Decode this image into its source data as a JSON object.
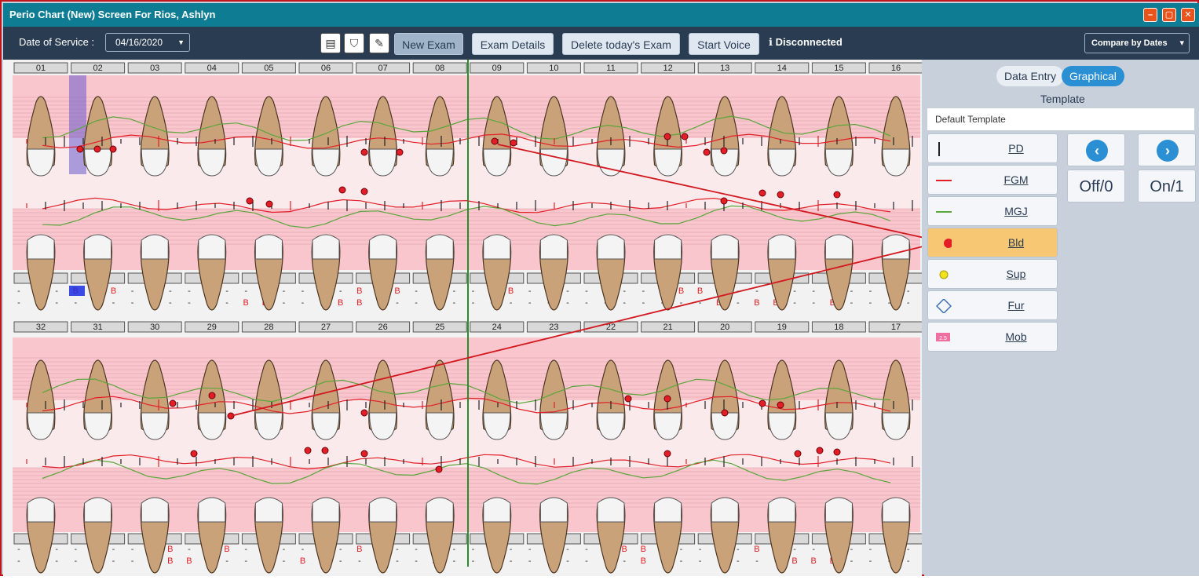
{
  "window": {
    "title": "Perio Chart (New) Screen For Rios, Ashlyn"
  },
  "toolbar": {
    "date_label": "Date of Service :",
    "date_value": "04/16/2020",
    "new_exam": "New Exam",
    "exam_details": "Exam Details",
    "delete_exam": "Delete today's Exam",
    "start_voice": "Start Voice",
    "status": "Disconnected",
    "compare": "Compare by Dates"
  },
  "chart": {
    "upper_teeth": [
      "01",
      "02",
      "03",
      "04",
      "05",
      "06",
      "07",
      "08",
      "09",
      "10",
      "11",
      "12",
      "13",
      "14",
      "15",
      "16"
    ],
    "lower_teeth": [
      "32",
      "31",
      "30",
      "29",
      "28",
      "27",
      "26",
      "25",
      "24",
      "23",
      "22",
      "21",
      "20",
      "19",
      "18",
      "17"
    ],
    "upper_row1": [
      "-",
      "-",
      "-",
      "B",
      "B",
      "B",
      "-",
      "-",
      "-",
      "-",
      "-",
      "-",
      "-",
      "-",
      "-",
      "-",
      "-",
      "-",
      "B",
      "-",
      "B",
      "-",
      "-",
      "-",
      "-",
      "B",
      "B",
      "-",
      "-",
      "-",
      "-",
      "-",
      "-",
      "-",
      "-",
      "B",
      "B",
      "B",
      "-",
      "-",
      "-",
      "-",
      "-",
      "-",
      "-",
      "-",
      "-",
      "-"
    ],
    "upper_row2": [
      "-",
      "-",
      "-",
      "-",
      "-",
      "-",
      "-",
      "-",
      "-",
      "-",
      "-",
      "-",
      "B",
      "B",
      "-",
      "-",
      "-",
      "B",
      "B",
      "-",
      "-",
      "-",
      "-",
      "-",
      "-",
      "-",
      "-",
      "-",
      "-",
      "-",
      "-",
      "-",
      "-",
      "-",
      "-",
      "-",
      "-",
      "B",
      "-",
      "B",
      "B",
      "-",
      "-",
      "B",
      "-",
      "-",
      "-",
      "-"
    ],
    "lower_row1": [
      "-",
      "-",
      "-",
      "-",
      "-",
      "-",
      "-",
      "-",
      "B",
      "-",
      "B",
      "B",
      "-",
      "-",
      "-",
      "-",
      "-",
      "-",
      "B",
      "-",
      "-",
      "-",
      "-",
      "-",
      "-",
      "-",
      "-",
      "-",
      "-",
      "-",
      "-",
      "-",
      "B",
      "B",
      "B",
      "-",
      "-",
      "B",
      "-",
      "B",
      "B",
      "-",
      "-",
      "-",
      "-",
      "-",
      "-",
      "-"
    ],
    "lower_row2": [
      "-",
      "-",
      "-",
      "-",
      "-",
      "-",
      "-",
      "-",
      "B",
      "B",
      "-",
      "-",
      "-",
      "-",
      "-",
      "B",
      "B",
      "-",
      "-",
      "-",
      "-",
      "-",
      "B",
      "-",
      "-",
      "-",
      "-",
      "-",
      "-",
      "-",
      "-",
      "-",
      "-",
      "B",
      "-",
      "-",
      "-",
      "-",
      "-",
      "-",
      "-",
      "B",
      "B",
      "B",
      "-",
      "-",
      "-",
      "-"
    ]
  },
  "side": {
    "data_entry": "Data Entry",
    "graphical": "Graphical",
    "template_label": "Template",
    "template_value": "Default Template",
    "tools": [
      {
        "label": "PD",
        "icon": "pd-line-icon"
      },
      {
        "label": "FGM",
        "icon": "fgm-line-icon"
      },
      {
        "label": "MGJ",
        "icon": "mgj-line-icon"
      },
      {
        "label": "Bld",
        "icon": "bleeding-dot-icon"
      },
      {
        "label": "Sup",
        "icon": "suppuration-dot-icon"
      },
      {
        "label": "Fur",
        "icon": "furcation-diamond-icon"
      },
      {
        "label": "Mob",
        "icon": "mobility-badge-icon"
      }
    ],
    "mobility_badge": "2.5",
    "off_label": "Off/0",
    "on_label": "On/1"
  },
  "colors": {
    "titlebar": "#0e7d93",
    "toolbar": "#2a3c52",
    "pink_band": "#f8c6cc",
    "bleeding": "#e31e26",
    "active_tool": "#f8c774"
  }
}
